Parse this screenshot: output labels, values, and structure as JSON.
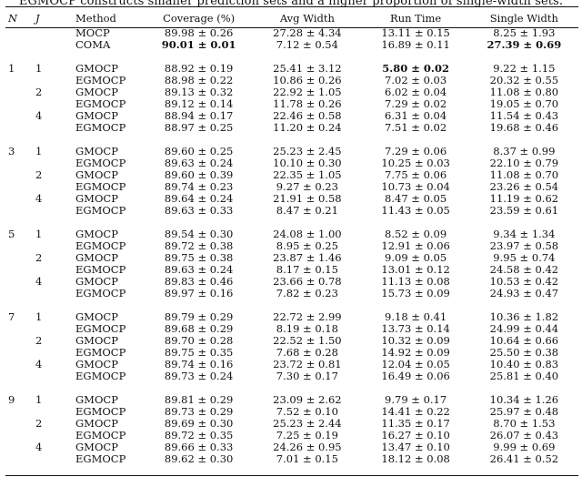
{
  "caption": "EGMOCP constructs smaller prediction sets and a higher proportion of single-width sets.",
  "headers": [
    "N",
    "J",
    "Method",
    "Coverage (%)",
    "Avg Width",
    "Run Time",
    "Single Width"
  ],
  "rows": [
    {
      "n": "",
      "j": "",
      "method": "MOCP",
      "coverage": "89.98 ± 0.26",
      "avg_width": "27.28 ± 4.34",
      "run_time": "13.11 ± 0.15",
      "single_width": "8.25 ± 1.93"
    },
    {
      "n": "",
      "j": "",
      "method": "COMA",
      "coverage": "90.01 ± 0.01",
      "avg_width": "7.12 ± 0.54",
      "run_time": "16.89 ± 0.11",
      "single_width": "27.39 ± 0.69"
    },
    {
      "gap": true
    },
    {
      "n": "1",
      "j": "1",
      "method": "GMOCP",
      "coverage": "88.92 ± 0.19",
      "avg_width": "25.41 ± 3.12",
      "run_time": "5.80 ± 0.02",
      "single_width": "9.22 ± 1.15"
    },
    {
      "n": "",
      "j": "",
      "method": "EGMOCP",
      "coverage": "88.98 ± 0.22",
      "avg_width": "10.86 ± 0.26",
      "run_time": "7.02 ± 0.03",
      "single_width": "20.32 ± 0.55"
    },
    {
      "n": "",
      "j": "2",
      "method": "GMOCP",
      "coverage": "89.13 ± 0.32",
      "avg_width": "22.92 ± 1.05",
      "run_time": "6.02 ± 0.04",
      "single_width": "11.08 ± 0.80"
    },
    {
      "n": "",
      "j": "",
      "method": "EGMOCP",
      "coverage": "89.12 ± 0.14",
      "avg_width": "11.78 ± 0.26",
      "run_time": "7.29 ± 0.02",
      "single_width": "19.05 ± 0.70"
    },
    {
      "n": "",
      "j": "4",
      "method": "GMOCP",
      "coverage": "88.94 ± 0.17",
      "avg_width": "22.46 ± 0.58",
      "run_time": "6.31 ± 0.04",
      "single_width": "11.54 ± 0.43"
    },
    {
      "n": "",
      "j": "",
      "method": "EGMOCP",
      "coverage": "88.97 ± 0.25",
      "avg_width": "11.20 ± 0.24",
      "run_time": "7.51 ± 0.02",
      "single_width": "19.68 ± 0.46"
    },
    {
      "gap": true
    },
    {
      "n": "3",
      "j": "1",
      "method": "GMOCP",
      "coverage": "89.60 ± 0.25",
      "avg_width": "25.23 ± 2.45",
      "run_time": "7.29 ± 0.06",
      "single_width": "8.37 ± 0.99"
    },
    {
      "n": "",
      "j": "",
      "method": "EGMOCP",
      "coverage": "89.63 ± 0.24",
      "avg_width": "10.10 ± 0.30",
      "run_time": "10.25 ± 0.03",
      "single_width": "22.10 ± 0.79"
    },
    {
      "n": "",
      "j": "2",
      "method": "GMOCP",
      "coverage": "89.60 ± 0.39",
      "avg_width": "22.35 ± 1.05",
      "run_time": "7.75 ± 0.06",
      "single_width": "11.08 ± 0.70"
    },
    {
      "n": "",
      "j": "",
      "method": "EGMOCP",
      "coverage": "89.74 ± 0.23",
      "avg_width": "9.27 ± 0.23",
      "run_time": "10.73 ± 0.04",
      "single_width": "23.26 ± 0.54"
    },
    {
      "n": "",
      "j": "4",
      "method": "GMOCP",
      "coverage": "89.64 ± 0.24",
      "avg_width": "21.91 ± 0.58",
      "run_time": "8.47 ± 0.05",
      "single_width": "11.19 ± 0.62"
    },
    {
      "n": "",
      "j": "",
      "method": "EGMOCP",
      "coverage": "89.63 ± 0.33",
      "avg_width": "8.47 ± 0.21",
      "run_time": "11.43 ± 0.05",
      "single_width": "23.59 ± 0.61"
    },
    {
      "gap": true
    },
    {
      "n": "5",
      "j": "1",
      "method": "GMOCP",
      "coverage": "89.54 ± 0.30",
      "avg_width": "24.08 ± 1.00",
      "run_time": "8.52 ± 0.09",
      "single_width": "9.34 ± 1.34"
    },
    {
      "n": "",
      "j": "",
      "method": "EGMOCP",
      "coverage": "89.72 ± 0.38",
      "avg_width": "8.95 ± 0.25",
      "run_time": "12.91 ± 0.06",
      "single_width": "23.97 ± 0.58"
    },
    {
      "n": "",
      "j": "2",
      "method": "GMOCP",
      "coverage": "89.75 ± 0.38",
      "avg_width": "23.87 ± 1.46",
      "run_time": "9.09 ± 0.05",
      "single_width": "9.95 ± 0.74"
    },
    {
      "n": "",
      "j": "",
      "method": "EGMOCP",
      "coverage": "89.63 ± 0.24",
      "avg_width": "8.17 ± 0.15",
      "run_time": "13.01 ± 0.12",
      "single_width": "24.58 ± 0.42"
    },
    {
      "n": "",
      "j": "4",
      "method": "GMOCP",
      "coverage": "89.83 ± 0.46",
      "avg_width": "23.66 ± 0.78",
      "run_time": "11.13 ± 0.08",
      "single_width": "10.53 ± 0.42"
    },
    {
      "n": "",
      "j": "",
      "method": "EGMOCP",
      "coverage": "89.97 ± 0.16",
      "avg_width": "7.82 ± 0.23",
      "run_time": "15.73 ± 0.09",
      "single_width": "24.93 ± 0.47"
    },
    {
      "gap": true
    },
    {
      "n": "7",
      "j": "1",
      "method": "GMOCP",
      "coverage": "89.79 ± 0.29",
      "avg_width": "22.72 ± 2.99",
      "run_time": "9.18 ± 0.41",
      "single_width": "10.36 ± 1.82"
    },
    {
      "n": "",
      "j": "",
      "method": "EGMOCP",
      "coverage": "89.68 ± 0.29",
      "avg_width": "8.19 ± 0.18",
      "run_time": "13.73 ± 0.14",
      "single_width": "24.99 ± 0.44"
    },
    {
      "n": "",
      "j": "2",
      "method": "GMOCP",
      "coverage": "89.70 ± 0.28",
      "avg_width": "22.52 ± 1.50",
      "run_time": "10.32 ± 0.09",
      "single_width": "10.64 ± 0.66"
    },
    {
      "n": "",
      "j": "",
      "method": "EGMOCP",
      "coverage": "89.75 ± 0.35",
      "avg_width": "7.68 ± 0.28",
      "run_time": "14.92 ± 0.09",
      "single_width": "25.50 ± 0.38"
    },
    {
      "n": "",
      "j": "4",
      "method": "GMOCP",
      "coverage": "89.74 ± 0.16",
      "avg_width": "23.72 ± 0.81",
      "run_time": "12.04 ± 0.05",
      "single_width": "10.40 ± 0.83"
    },
    {
      "n": "",
      "j": "",
      "method": "EGMOCP",
      "coverage": "89.73 ± 0.24",
      "avg_width": "7.30 ± 0.17",
      "run_time": "16.49 ± 0.06",
      "single_width": "25.81 ± 0.40"
    },
    {
      "gap": true
    },
    {
      "n": "9",
      "j": "1",
      "method": "GMOCP",
      "coverage": "89.81 ± 0.29",
      "avg_width": "23.09 ± 2.62",
      "run_time": "9.79 ± 0.17",
      "single_width": "10.34 ± 1.26"
    },
    {
      "n": "",
      "j": "",
      "method": "EGMOCP",
      "coverage": "89.73 ± 0.29",
      "avg_width": "7.52 ± 0.10",
      "run_time": "14.41 ± 0.22",
      "single_width": "25.97 ± 0.48"
    },
    {
      "n": "",
      "j": "2",
      "method": "GMOCP",
      "coverage": "89.69 ± 0.30",
      "avg_width": "25.23 ± 2.44",
      "run_time": "11.35 ± 0.17",
      "single_width": "8.70 ± 1.53"
    },
    {
      "n": "",
      "j": "",
      "method": "EGMOCP",
      "coverage": "89.72 ± 0.35",
      "avg_width": "7.25 ± 0.19",
      "run_time": "16.27 ± 0.10",
      "single_width": "26.07 ± 0.43"
    },
    {
      "n": "",
      "j": "4",
      "method": "GMOCP",
      "coverage": "89.66 ± 0.33",
      "avg_width": "24.26 ± 0.95",
      "run_time": "13.47 ± 0.10",
      "single_width": "9.99 ± 0.69"
    },
    {
      "n": "",
      "j": "",
      "method": "EGMOCP",
      "coverage": "89.62 ± 0.30",
      "avg_width": "7.01 ± 0.15",
      "run_time": "18.12 ± 0.08",
      "single_width": "26.41 ± 0.52"
    }
  ],
  "bold_cells": [
    {
      "row": 1,
      "col": "coverage"
    },
    {
      "row": 1,
      "col": "single_width"
    },
    {
      "row": 3,
      "col": "run_time"
    },
    {
      "row": 37,
      "col": "avg_width"
    }
  ]
}
